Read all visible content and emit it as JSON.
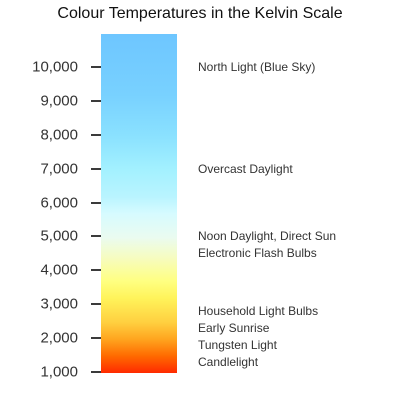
{
  "title": "Colour Temperatures in the Kelvin Scale",
  "scale": {
    "ticks": [
      "1,000",
      "2,000",
      "3,000",
      "4,000",
      "5,000",
      "6,000",
      "7,000",
      "8,000",
      "9,000",
      "10,000"
    ]
  },
  "annotations": [
    {
      "label": "North Light (Blue Sky)",
      "kelvin": 10000
    },
    {
      "label": "Overcast Daylight",
      "kelvin": 7000
    },
    {
      "label": "Noon Daylight, Direct Sun",
      "kelvin": 5000
    },
    {
      "label": "Electronic Flash Bulbs",
      "kelvin": 4500
    },
    {
      "label": "Household Light Bulbs",
      "kelvin": 2800
    },
    {
      "label": "Early Sunrise",
      "kelvin": 2300
    },
    {
      "label": "Tungsten Light",
      "kelvin": 1800
    },
    {
      "label": "Candlelight",
      "kelvin": 1300
    }
  ],
  "colors": {
    "warm_end": "#ff2a00",
    "cool_end": "#6ec6ff",
    "text": "#333333"
  }
}
